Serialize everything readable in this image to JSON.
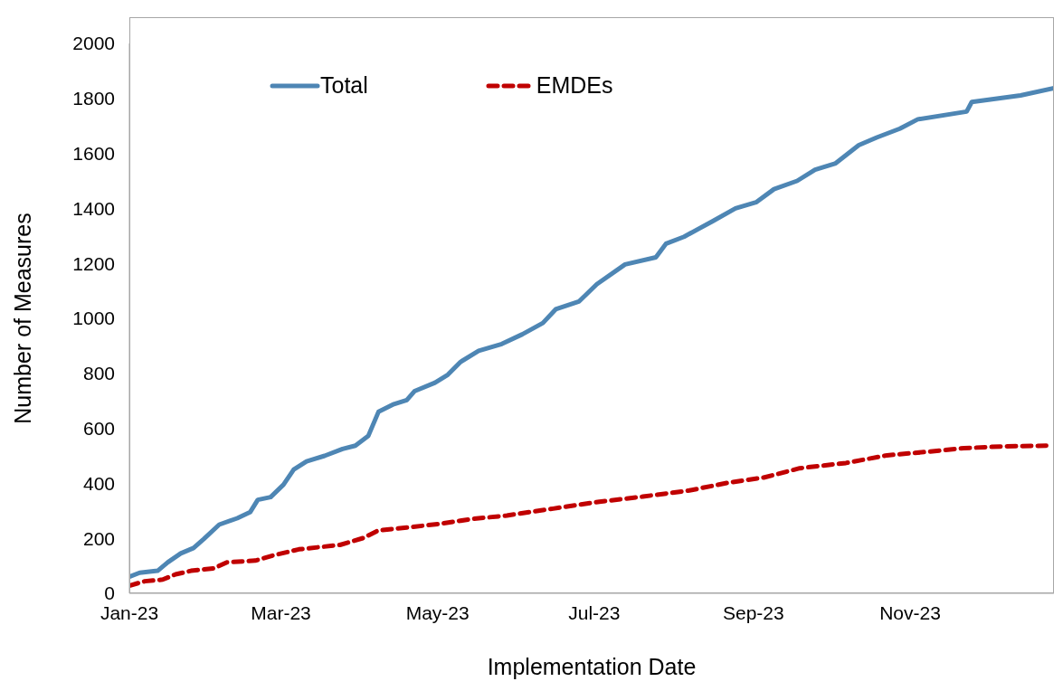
{
  "chart_data": {
    "type": "line",
    "xlabel": "Implementation Date",
    "ylabel": "Number of  Measures",
    "xlim": [
      "2023-01-01",
      "2023-12-27"
    ],
    "xticks": [
      {
        "value": "2023-01-01",
        "label": "Jan-23"
      },
      {
        "value": "2023-03-01",
        "label": "Mar-23"
      },
      {
        "value": "2023-05-01",
        "label": "May-23"
      },
      {
        "value": "2023-07-01",
        "label": "Jul-23"
      },
      {
        "value": "2023-09-01",
        "label": "Sep-23"
      },
      {
        "value": "2023-11-01",
        "label": "Nov-23"
      }
    ],
    "ylim": [
      0,
      2000
    ],
    "yticks": [
      0,
      200,
      400,
      600,
      800,
      1000,
      1200,
      1400,
      1600,
      1800,
      2000
    ],
    "grid": false,
    "legend": "top left",
    "marker": "none",
    "series": [
      {
        "name": "Total",
        "color": "#4e86b4",
        "line_style": "solid",
        "x": [
          "2023-01-01",
          "2023-01-05",
          "2023-01-12",
          "2023-01-16",
          "2023-01-21",
          "2023-01-26",
          "2023-01-30",
          "2023-02-05",
          "2023-02-12",
          "2023-02-17",
          "2023-02-20",
          "2023-02-25",
          "2023-03-02",
          "2023-03-06",
          "2023-03-11",
          "2023-03-18",
          "2023-03-25",
          "2023-03-30",
          "2023-04-04",
          "2023-04-08",
          "2023-04-14",
          "2023-04-19",
          "2023-04-22",
          "2023-04-30",
          "2023-05-05",
          "2023-05-10",
          "2023-05-17",
          "2023-05-26",
          "2023-06-03",
          "2023-06-11",
          "2023-06-16",
          "2023-06-25",
          "2023-07-02",
          "2023-07-13",
          "2023-07-25",
          "2023-07-29",
          "2023-08-05",
          "2023-08-16",
          "2023-08-25",
          "2023-09-02",
          "2023-09-09",
          "2023-09-18",
          "2023-09-25",
          "2023-10-03",
          "2023-10-12",
          "2023-10-19",
          "2023-10-28",
          "2023-11-04",
          "2023-11-23",
          "2023-11-25",
          "2023-12-14",
          "2023-12-27"
        ],
        "values": [
          60,
          75,
          82,
          113,
          145,
          165,
          198,
          250,
          273,
          295,
          340,
          350,
          395,
          450,
          480,
          500,
          525,
          537,
          572,
          660,
          688,
          703,
          735,
          766,
          795,
          842,
          882,
          907,
          942,
          983,
          1033,
          1061,
          1124,
          1196,
          1222,
          1272,
          1297,
          1353,
          1400,
          1422,
          1470,
          1500,
          1541,
          1564,
          1630,
          1658,
          1690,
          1724,
          1752,
          1787,
          1811,
          1837
        ]
      },
      {
        "name": "EMDEs",
        "color": "#c00000",
        "line_style": "dashed",
        "x": [
          "2023-01-01",
          "2023-01-07",
          "2023-01-14",
          "2023-01-19",
          "2023-01-25",
          "2023-02-03",
          "2023-02-08",
          "2023-02-19",
          "2023-02-26",
          "2023-03-08",
          "2023-03-24",
          "2023-04-02",
          "2023-04-08",
          "2023-04-19",
          "2023-05-03",
          "2023-05-14",
          "2023-05-28",
          "2023-06-15",
          "2023-07-03",
          "2023-07-20",
          "2023-08-07",
          "2023-08-22",
          "2023-09-05",
          "2023-09-19",
          "2023-10-07",
          "2023-10-23",
          "2023-11-08",
          "2023-11-22",
          "2023-12-06",
          "2023-12-24"
        ],
        "values": [
          28,
          44,
          50,
          69,
          82,
          91,
          113,
          119,
          138,
          160,
          176,
          201,
          229,
          239,
          254,
          270,
          283,
          308,
          333,
          352,
          374,
          402,
          421,
          455,
          474,
          502,
          515,
          528,
          534,
          537
        ]
      }
    ]
  }
}
